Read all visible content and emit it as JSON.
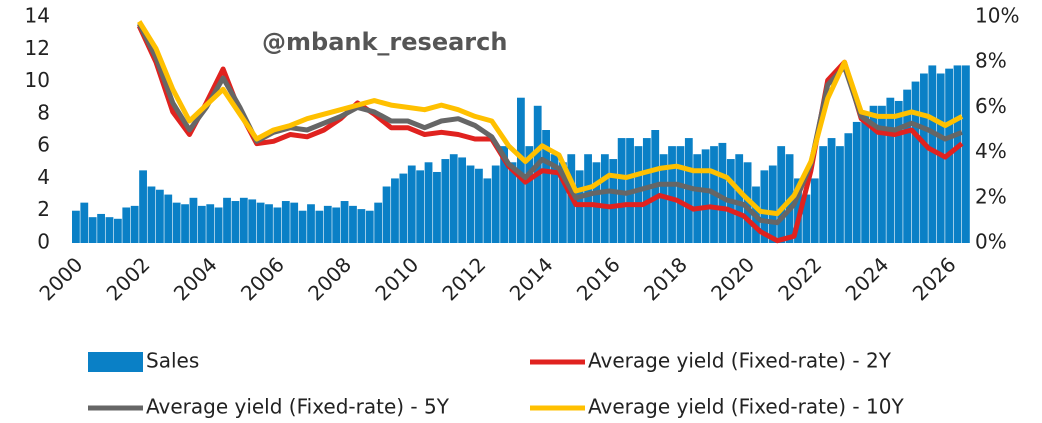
{
  "chart_data": {
    "type": "bar-line",
    "annotation": "@mbank_research",
    "x": [
      2002,
      2002.5,
      2003,
      2003.5,
      2004,
      2004.5,
      2005,
      2005.5,
      2006,
      2006.5,
      2007,
      2007.5,
      2008,
      2008.5,
      2009,
      2009.5,
      2010,
      2010.5,
      2011,
      2011.5,
      2012,
      2012.5,
      2013,
      2013.5,
      2014,
      2014.5,
      2015,
      2015.5,
      2016,
      2016.5,
      2017,
      2017.5,
      2018,
      2018.5,
      2019,
      2019.5,
      2020,
      2020.5,
      2021,
      2021.5,
      2022,
      2022.5,
      2023,
      2023.5,
      2024,
      2024.5,
      2025,
      2025.5,
      2026,
      2026.5
    ],
    "series": [
      {
        "name": "Sales",
        "type": "bar",
        "color": "#0a80c6",
        "bar_width": 0.25,
        "x": [
          2000,
          2000.25,
          2000.5,
          2000.75,
          2001,
          2001.25,
          2001.5,
          2001.75,
          2002,
          2002.25,
          2002.5,
          2002.75,
          2003,
          2003.25,
          2003.5,
          2003.75,
          2004,
          2004.25,
          2004.5,
          2004.75,
          2005,
          2005.25,
          2005.5,
          2005.75,
          2006,
          2006.25,
          2006.5,
          2006.75,
          2007,
          2007.25,
          2007.5,
          2007.75,
          2008,
          2008.25,
          2008.5,
          2008.75,
          2009,
          2009.25,
          2009.5,
          2009.75,
          2010,
          2010.25,
          2010.5,
          2010.75,
          2011,
          2011.25,
          2011.5,
          2011.75,
          2012,
          2012.25,
          2012.5,
          2012.75,
          2013,
          2013.25,
          2013.5,
          2013.75,
          2014,
          2014.25,
          2014.5,
          2014.75,
          2015,
          2015.25,
          2015.5,
          2015.75,
          2016,
          2016.25,
          2016.5,
          2016.75,
          2017,
          2017.25,
          2017.5,
          2017.75,
          2018,
          2018.25,
          2018.5,
          2018.75,
          2019,
          2019.25,
          2019.5,
          2019.75,
          2020,
          2020.25,
          2020.5,
          2020.75,
          2021,
          2021.25,
          2021.5,
          2021.75,
          2022,
          2022.25,
          2022.5,
          2022.75,
          2023,
          2023.25,
          2023.5,
          2023.75,
          2024,
          2024.25,
          2024.5,
          2024.75,
          2025,
          2025.25,
          2025.5,
          2025.75,
          2026,
          2026.25,
          2026.5
        ],
        "values": [
          2.0,
          2.5,
          1.6,
          1.8,
          1.6,
          1.5,
          2.2,
          2.3,
          4.5,
          3.5,
          3.3,
          3.0,
          2.5,
          2.4,
          2.8,
          2.3,
          2.4,
          2.2,
          2.8,
          2.6,
          2.8,
          2.7,
          2.5,
          2.4,
          2.2,
          2.6,
          2.5,
          2.0,
          2.4,
          2.0,
          2.3,
          2.2,
          2.6,
          2.3,
          2.1,
          2.0,
          2.5,
          3.5,
          4.0,
          4.3,
          4.8,
          4.5,
          5.0,
          4.4,
          5.2,
          5.5,
          5.3,
          4.8,
          4.6,
          4.0,
          4.8,
          6.0,
          5.0,
          9.0,
          6.0,
          8.5,
          7.0,
          5.5,
          5.0,
          5.5,
          4.5,
          5.5,
          5.0,
          5.5,
          5.2,
          6.5,
          6.5,
          6.0,
          6.5,
          7.0,
          5.5,
          6.0,
          6.0,
          6.5,
          5.5,
          5.8,
          6.0,
          6.2,
          5.2,
          5.5,
          5.0,
          3.5,
          4.5,
          4.8,
          6.0,
          5.5,
          4.0,
          3.0,
          4.0,
          6.0,
          6.5,
          6.0,
          6.8,
          7.5,
          8.0,
          8.5,
          8.5,
          9.0,
          8.8,
          9.5,
          10.0,
          10.5,
          11.0,
          10.5,
          10.8,
          11.0,
          11.0
        ]
      },
      {
        "name": "Average yield (Fixed-rate) - 2Y",
        "type": "line",
        "axis": "y2",
        "color": "#e0221f",
        "values": [
          9.6,
          8.0,
          5.8,
          4.8,
          6.2,
          7.7,
          5.8,
          4.4,
          4.5,
          4.8,
          4.7,
          5.0,
          5.5,
          6.2,
          5.7,
          5.1,
          5.1,
          4.8,
          4.9,
          4.8,
          4.6,
          4.6,
          3.4,
          2.7,
          3.2,
          3.1,
          1.7,
          1.7,
          1.6,
          1.7,
          1.7,
          2.1,
          1.9,
          1.5,
          1.6,
          1.5,
          1.2,
          0.5,
          0.1,
          0.3,
          3.2,
          7.2,
          8.0,
          5.5,
          4.9,
          4.8,
          5.0,
          4.2,
          3.8,
          4.4
        ]
      },
      {
        "name": "Average yield (Fixed-rate) - 5Y",
        "type": "line",
        "axis": "y2",
        "color": "#666666",
        "values": [
          9.7,
          8.2,
          6.2,
          5.0,
          6.0,
          7.3,
          6.0,
          4.5,
          4.9,
          5.1,
          5.0,
          5.3,
          5.6,
          6.0,
          5.8,
          5.4,
          5.4,
          5.1,
          5.4,
          5.5,
          5.2,
          4.7,
          3.5,
          2.9,
          3.7,
          3.3,
          2.0,
          2.2,
          2.3,
          2.2,
          2.4,
          2.6,
          2.6,
          2.4,
          2.3,
          1.9,
          1.7,
          1.0,
          0.9,
          1.7,
          3.5,
          7.0,
          7.8,
          5.6,
          5.1,
          5.0,
          5.3,
          5.0,
          4.6,
          4.9
        ]
      },
      {
        "name": "Average yield (Fixed-rate) - 10Y",
        "type": "line",
        "axis": "y2",
        "color": "#ffc000",
        "values": [
          9.8,
          8.6,
          6.8,
          5.4,
          6.1,
          6.8,
          5.7,
          4.6,
          5.0,
          5.2,
          5.5,
          5.7,
          5.9,
          6.1,
          6.3,
          6.1,
          6.0,
          5.9,
          6.1,
          5.9,
          5.6,
          5.4,
          4.3,
          3.6,
          4.3,
          3.9,
          2.3,
          2.5,
          3.0,
          2.9,
          3.1,
          3.3,
          3.4,
          3.2,
          3.2,
          2.9,
          2.1,
          1.4,
          1.3,
          2.1,
          3.6,
          6.4,
          8.0,
          5.8,
          5.6,
          5.6,
          5.8,
          5.6,
          5.2,
          5.6
        ]
      }
    ],
    "xlim": [
      2000,
      2026.5
    ],
    "xticks": [
      2000,
      2002,
      2004,
      2006,
      2008,
      2010,
      2012,
      2014,
      2016,
      2018,
      2020,
      2022,
      2024,
      2026
    ],
    "ylim": [
      0,
      14
    ],
    "yticks": [
      0,
      2,
      4,
      6,
      8,
      10,
      12,
      14
    ],
    "y2lim": [
      0,
      10
    ],
    "y2ticks": [
      {
        "value": 0,
        "label": "0%"
      },
      {
        "value": 2,
        "label": "2%"
      },
      {
        "value": 4,
        "label": "4%"
      },
      {
        "value": 6,
        "label": "6%"
      },
      {
        "value": 8,
        "label": "8%"
      },
      {
        "value": 10,
        "label": "10%"
      }
    ],
    "grid": false
  }
}
